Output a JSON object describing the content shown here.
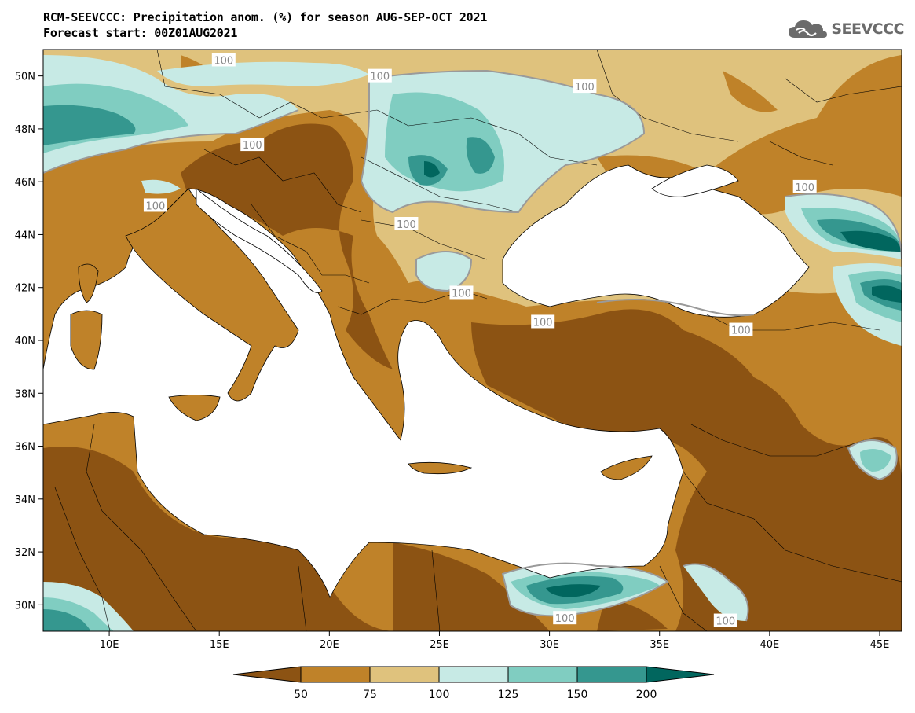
{
  "header": {
    "title_line1": "RCM-SEEVCCC: Precipitation anom. (%) for season AUG-SEP-OCT 2021",
    "title_line2": "Forecast start: 00Z01AUG2021",
    "logo_text": "SEEVCCC",
    "logo_icon": "cloud-icon"
  },
  "map": {
    "projection": "lat-lon",
    "lon_range": [
      7,
      46
    ],
    "lat_range": [
      29,
      51
    ],
    "lon_ticks": [
      {
        "value": 10,
        "label": "10E"
      },
      {
        "value": 15,
        "label": "15E"
      },
      {
        "value": 20,
        "label": "20E"
      },
      {
        "value": 25,
        "label": "25E"
      },
      {
        "value": 30,
        "label": "30E"
      },
      {
        "value": 35,
        "label": "35E"
      },
      {
        "value": 40,
        "label": "40E"
      },
      {
        "value": 45,
        "label": "45E"
      }
    ],
    "lat_ticks": [
      {
        "value": 30,
        "label": "30N"
      },
      {
        "value": 32,
        "label": "32N"
      },
      {
        "value": 34,
        "label": "34N"
      },
      {
        "value": 36,
        "label": "36N"
      },
      {
        "value": 38,
        "label": "38N"
      },
      {
        "value": 40,
        "label": "40N"
      },
      {
        "value": 42,
        "label": "42N"
      },
      {
        "value": 44,
        "label": "44N"
      },
      {
        "value": 46,
        "label": "46N"
      },
      {
        "value": 48,
        "label": "48N"
      },
      {
        "value": 50,
        "label": "50N"
      }
    ],
    "contour_labels": [
      {
        "text": "100",
        "lon": 15.2,
        "lat": 50.6
      },
      {
        "text": "100",
        "lon": 22.3,
        "lat": 50.0
      },
      {
        "text": "100",
        "lon": 16.5,
        "lat": 47.4
      },
      {
        "text": "100",
        "lon": 12.1,
        "lat": 45.1
      },
      {
        "text": "100",
        "lon": 23.5,
        "lat": 44.4
      },
      {
        "text": "100",
        "lon": 26.0,
        "lat": 41.8
      },
      {
        "text": "100",
        "lon": 29.7,
        "lat": 40.7
      },
      {
        "text": "100",
        "lon": 38.7,
        "lat": 40.4
      },
      {
        "text": "100",
        "lon": 31.6,
        "lat": 49.6
      },
      {
        "text": "100",
        "lon": 41.6,
        "lat": 45.8
      },
      {
        "text": "100",
        "lon": 30.7,
        "lat": 29.5
      },
      {
        "text": "100",
        "lon": 38.0,
        "lat": 29.4
      }
    ]
  },
  "colorbar": {
    "labels": [
      "50",
      "75",
      "100",
      "125",
      "150",
      "200"
    ],
    "colors": [
      "#8c5313",
      "#bf8229",
      "#dfc27d",
      "#c7eae5",
      "#80cdc1",
      "#35978f",
      "#01665e"
    ]
  }
}
